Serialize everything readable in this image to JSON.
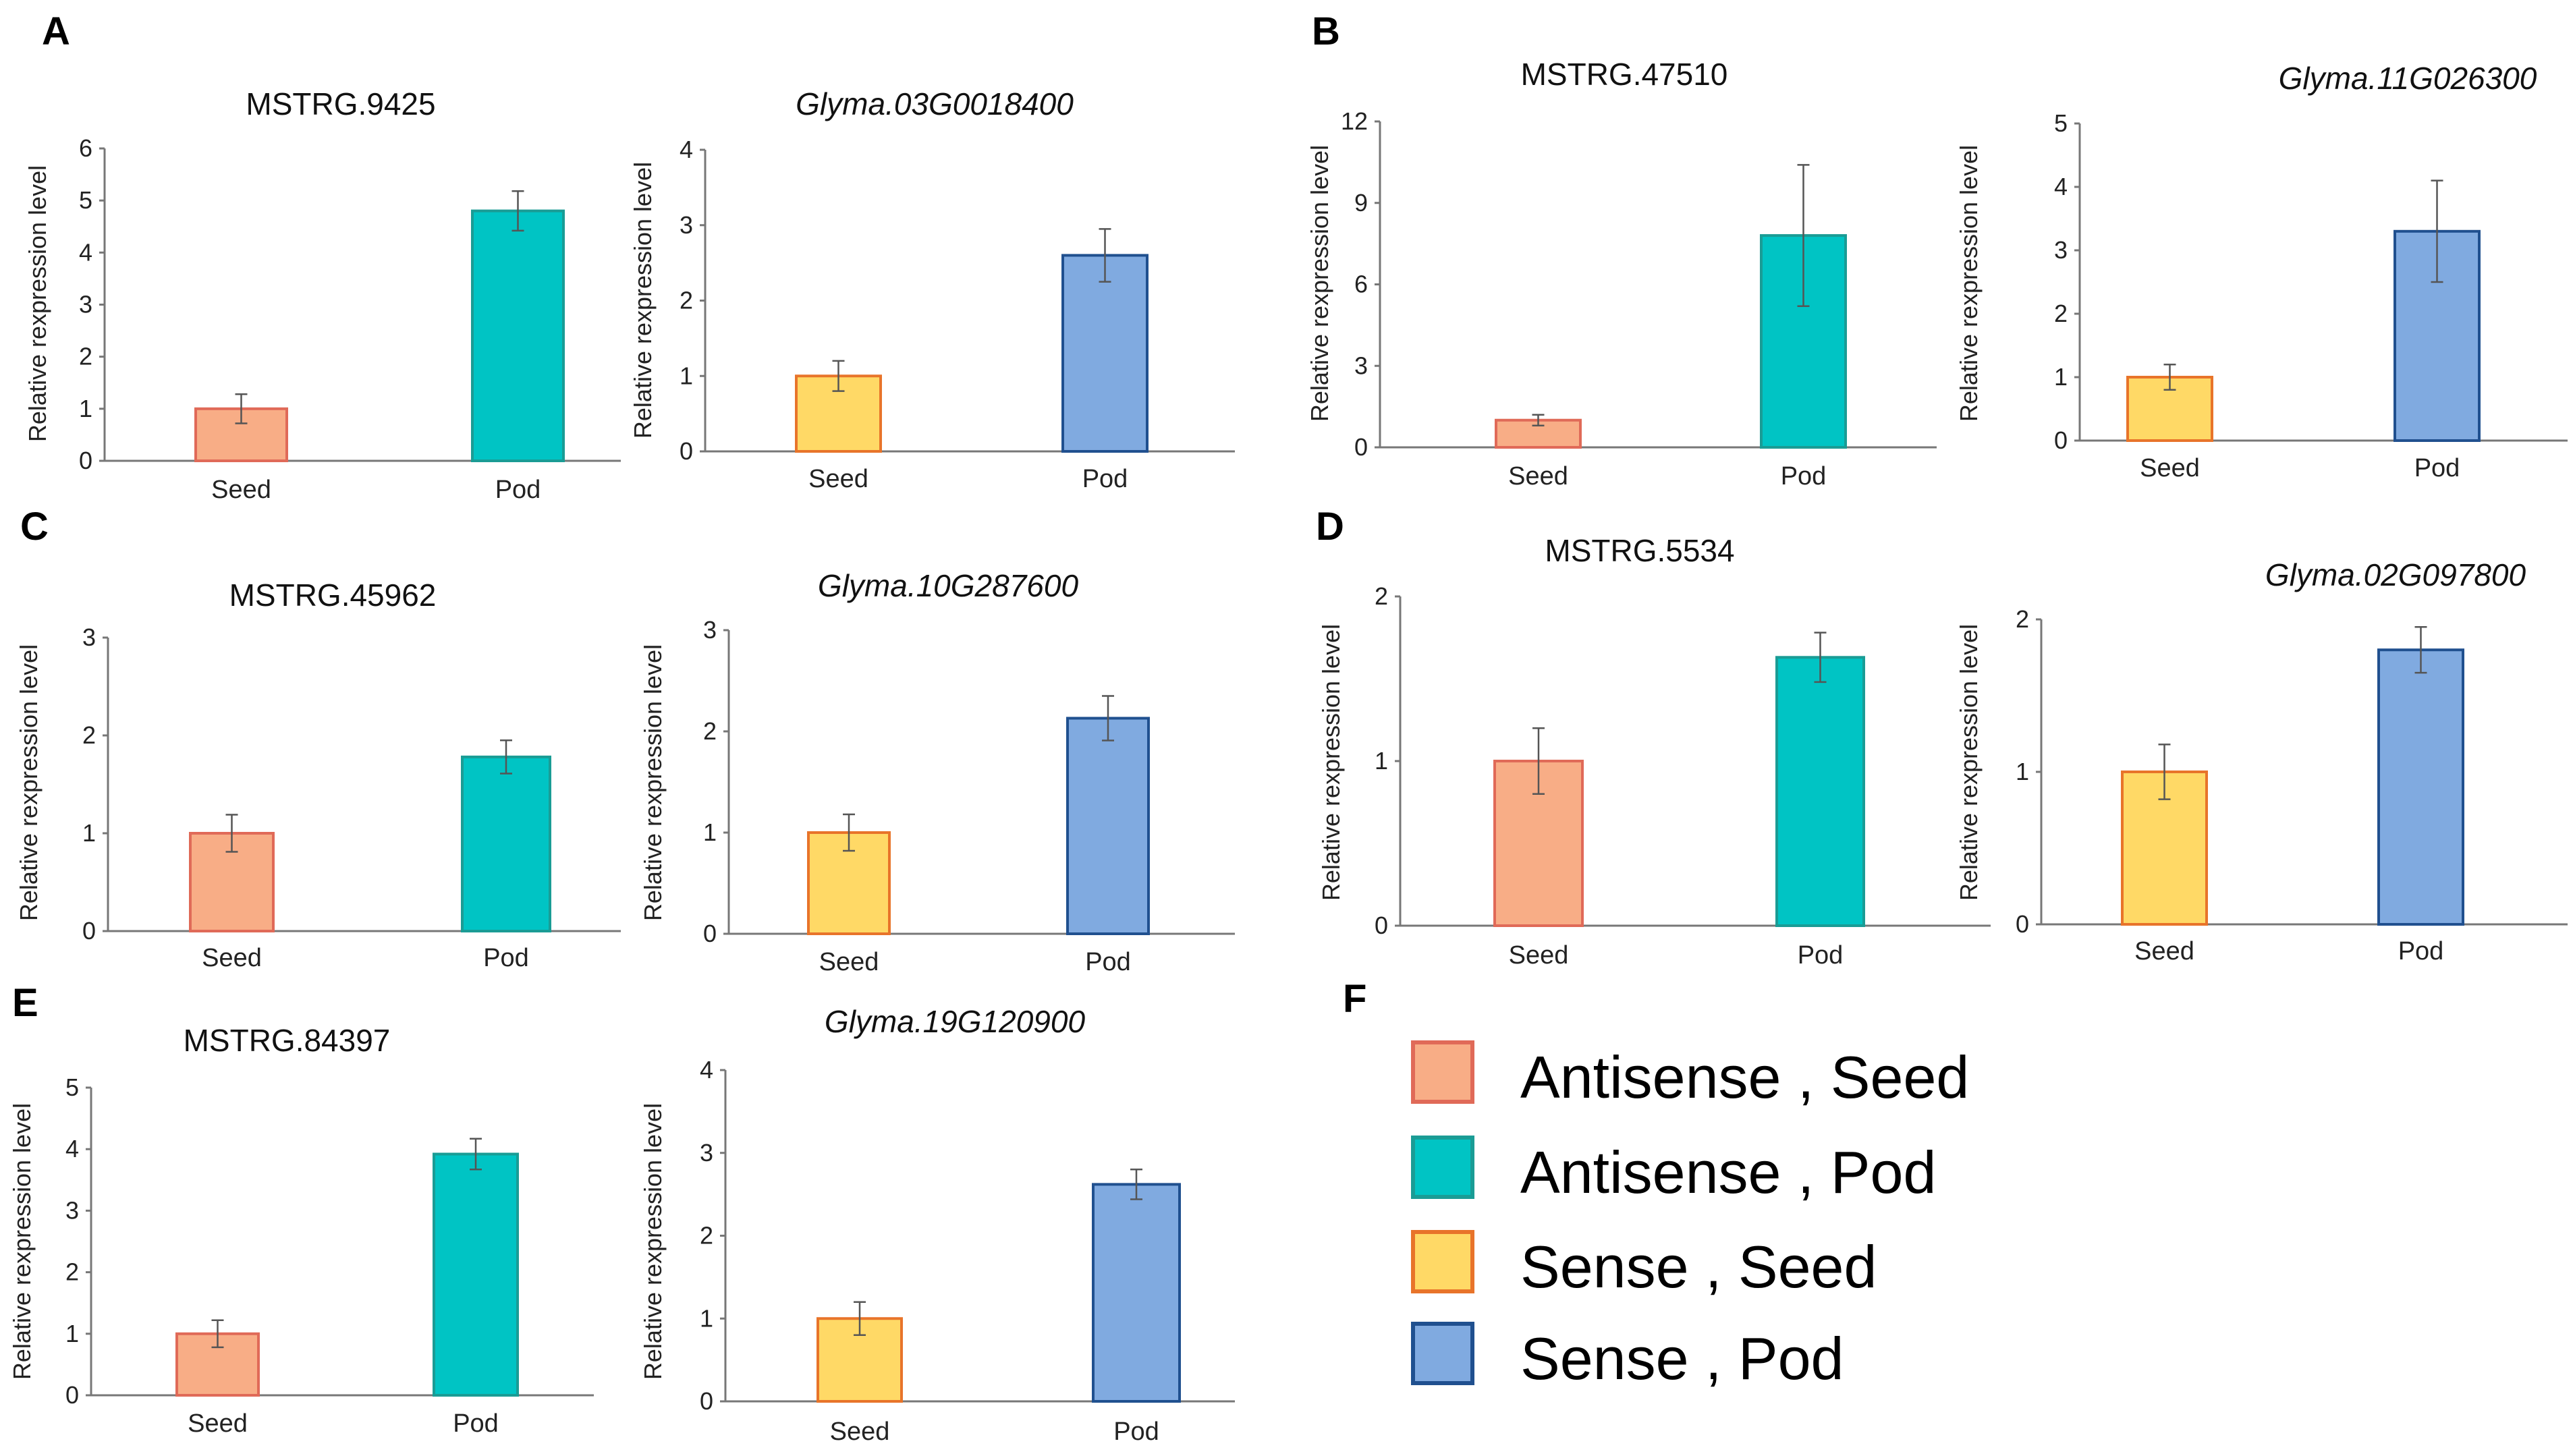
{
  "panels": [
    {
      "letter": "A"
    },
    {
      "letter": "B"
    },
    {
      "letter": "C"
    },
    {
      "letter": "D"
    },
    {
      "letter": "E"
    },
    {
      "letter": "F"
    }
  ],
  "legend": {
    "items": [
      {
        "label": "Antisense , Seed",
        "fill": "#F8AD86",
        "stroke": "#E06A58"
      },
      {
        "label": "Antisense , Pod",
        "fill": "#00C4C4",
        "stroke": "#1A9C95"
      },
      {
        "label": "Sense , Seed",
        "fill": "#FFD966",
        "stroke": "#E8742A"
      },
      {
        "label": "Sense , Pod",
        "fill": "#80AAE0",
        "stroke": "#20508F"
      }
    ]
  },
  "chart_data": [
    {
      "type": "bar",
      "title": "MSTRG.9425",
      "italic": false,
      "categories": [
        "Seed",
        "Pod"
      ],
      "values": [
        1.0,
        4.8
      ],
      "errors": [
        0.28,
        0.38
      ],
      "ylim": [
        0,
        6
      ],
      "ticks": [
        0,
        1,
        2,
        3,
        4,
        5,
        6
      ],
      "ylabel": "Relative rexpression level",
      "xlabel": "",
      "colors": [
        "antisense-seed",
        "antisense-pod"
      ]
    },
    {
      "type": "bar",
      "title": "Glyma.03G0018400",
      "italic": true,
      "categories": [
        "Seed",
        "Pod"
      ],
      "values": [
        1.0,
        2.6
      ],
      "errors": [
        0.2,
        0.35
      ],
      "ylim": [
        0,
        4
      ],
      "ticks": [
        0,
        1,
        2,
        3,
        4
      ],
      "ylabel": "Relative rexpression level",
      "xlabel": "",
      "colors": [
        "sense-seed",
        "sense-pod"
      ]
    },
    {
      "type": "bar",
      "title": "MSTRG.47510",
      "italic": false,
      "categories": [
        "Seed",
        "Pod"
      ],
      "values": [
        1.0,
        7.8
      ],
      "errors": [
        0.2,
        2.6
      ],
      "ylim": [
        0,
        12
      ],
      "ticks": [
        0,
        3,
        6,
        9,
        12
      ],
      "ylabel": "Relative rexpression level",
      "xlabel": "",
      "colors": [
        "antisense-seed",
        "antisense-pod"
      ]
    },
    {
      "type": "bar",
      "title": "Glyma.11G026300",
      "italic": true,
      "categories": [
        "Seed",
        "Pod"
      ],
      "values": [
        1.0,
        3.3
      ],
      "errors": [
        0.2,
        0.8
      ],
      "ylim": [
        0,
        5
      ],
      "ticks": [
        0,
        1,
        2,
        3,
        4,
        5
      ],
      "ylabel": "Relative rexpression level",
      "xlabel": "",
      "colors": [
        "sense-seed",
        "sense-pod"
      ]
    },
    {
      "type": "bar",
      "title": "MSTRG.45962",
      "italic": false,
      "categories": [
        "Seed",
        "Pod"
      ],
      "values": [
        1.0,
        1.78
      ],
      "errors": [
        0.19,
        0.17
      ],
      "ylim": [
        0,
        3
      ],
      "ticks": [
        0,
        1,
        2,
        3
      ],
      "ylabel": "Relative rexpression level",
      "xlabel": "",
      "colors": [
        "antisense-seed",
        "antisense-pod"
      ]
    },
    {
      "type": "bar",
      "title": "Glyma.10G287600",
      "italic": true,
      "categories": [
        "Seed",
        "Pod"
      ],
      "values": [
        1.0,
        2.13
      ],
      "errors": [
        0.18,
        0.22
      ],
      "ylim": [
        0,
        3
      ],
      "ticks": [
        0,
        1,
        2,
        3
      ],
      "ylabel": "Relative rexpression level",
      "xlabel": "",
      "colors": [
        "sense-seed",
        "sense-pod"
      ]
    },
    {
      "type": "bar",
      "title": "MSTRG.5534",
      "italic": false,
      "categories": [
        "Seed",
        "Pod"
      ],
      "values": [
        1.0,
        1.63
      ],
      "errors": [
        0.2,
        0.15
      ],
      "ylim": [
        0,
        2
      ],
      "ticks": [
        0,
        1,
        2
      ],
      "ylabel": "Relative rexpression level",
      "xlabel": "",
      "colors": [
        "antisense-seed",
        "antisense-pod"
      ]
    },
    {
      "type": "bar",
      "title": "Glyma.02G097800",
      "italic": true,
      "categories": [
        "Seed",
        "Pod"
      ],
      "values": [
        1.0,
        1.8
      ],
      "errors": [
        0.18,
        0.15
      ],
      "ylim": [
        0,
        2
      ],
      "ticks": [
        0,
        1,
        2
      ],
      "ylabel": "Relative rexpression level",
      "xlabel": "",
      "colors": [
        "sense-seed",
        "sense-pod"
      ]
    },
    {
      "type": "bar",
      "title": "MSTRG.84397",
      "italic": false,
      "categories": [
        "Seed",
        "Pod"
      ],
      "values": [
        1.0,
        3.92
      ],
      "errors": [
        0.22,
        0.25
      ],
      "ylim": [
        0,
        5
      ],
      "ticks": [
        0,
        1,
        2,
        3,
        4,
        5
      ],
      "ylabel": "Relative rexpression level",
      "xlabel": "",
      "colors": [
        "antisense-seed",
        "antisense-pod"
      ]
    },
    {
      "type": "bar",
      "title": "Glyma.19G120900",
      "italic": true,
      "categories": [
        "Seed",
        "Pod"
      ],
      "values": [
        1.0,
        2.62
      ],
      "errors": [
        0.2,
        0.18
      ],
      "ylim": [
        0,
        4
      ],
      "ticks": [
        0,
        1,
        2,
        3,
        4
      ],
      "ylabel": "Relative rexpression level",
      "xlabel": "",
      "colors": [
        "sense-seed",
        "sense-pod"
      ]
    }
  ]
}
